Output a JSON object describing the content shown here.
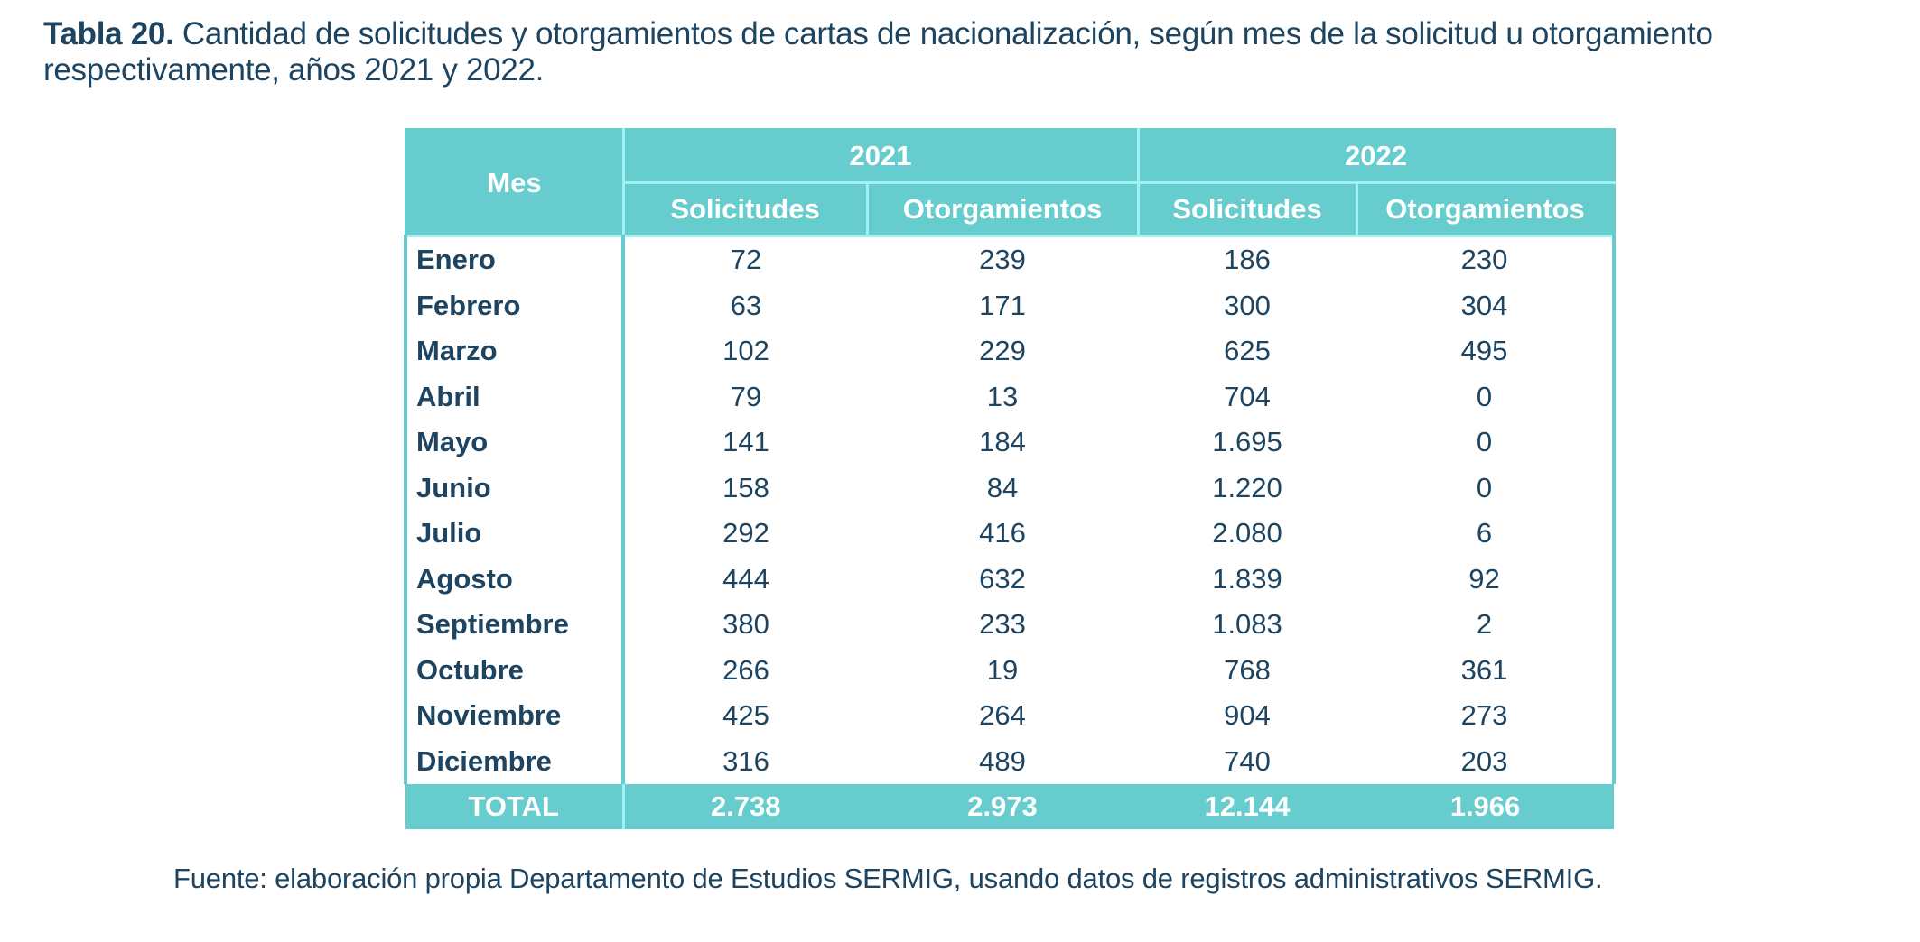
{
  "caption": {
    "label": "Tabla 20.",
    "text": " Cantidad de solicitudes y otorgamientos de cartas de nacionalización, según mes de la solicitud u otorgamiento respectivamente, años 2021 y 2022."
  },
  "table": {
    "month_header": "Mes",
    "years": [
      "2021",
      "2022"
    ],
    "subheaders": [
      "Solicitudes",
      "Otorgamientos",
      "Solicitudes",
      "Otorgamientos"
    ],
    "rows": [
      {
        "month": "Enero",
        "s2021": "72",
        "o2021": "239",
        "s2022": "186",
        "o2022": "230"
      },
      {
        "month": "Febrero",
        "s2021": "63",
        "o2021": "171",
        "s2022": "300",
        "o2022": "304"
      },
      {
        "month": "Marzo",
        "s2021": "102",
        "o2021": "229",
        "s2022": "625",
        "o2022": "495"
      },
      {
        "month": "Abril",
        "s2021": "79",
        "o2021": "13",
        "s2022": "704",
        "o2022": "0"
      },
      {
        "month": "Mayo",
        "s2021": "141",
        "o2021": "184",
        "s2022": "1.695",
        "o2022": "0"
      },
      {
        "month": "Junio",
        "s2021": "158",
        "o2021": "84",
        "s2022": "1.220",
        "o2022": "0"
      },
      {
        "month": "Julio",
        "s2021": "292",
        "o2021": "416",
        "s2022": "2.080",
        "o2022": "6"
      },
      {
        "month": "Agosto",
        "s2021": "444",
        "o2021": "632",
        "s2022": "1.839",
        "o2022": "92"
      },
      {
        "month": "Septiembre",
        "s2021": "380",
        "o2021": "233",
        "s2022": "1.083",
        "o2022": "2"
      },
      {
        "month": "Octubre",
        "s2021": "266",
        "o2021": "19",
        "s2022": "768",
        "o2022": "361"
      },
      {
        "month": "Noviembre",
        "s2021": "425",
        "o2021": "264",
        "s2022": "904",
        "o2022": "273"
      },
      {
        "month": "Diciembre",
        "s2021": "316",
        "o2021": "489",
        "s2022": "740",
        "o2022": "203"
      }
    ],
    "total": {
      "label": "TOTAL",
      "s2021": "2.738",
      "o2021": "2.973",
      "s2022": "12.144",
      "o2022": "1.966"
    }
  },
  "source": "Fuente: elaboración propia Departamento de Estudios SERMIG, usando datos de registros administrativos SERMIG.",
  "colors": {
    "header_bg": "#67cccd",
    "header_divider": "#9ff1f2",
    "text": "#1d4460"
  }
}
